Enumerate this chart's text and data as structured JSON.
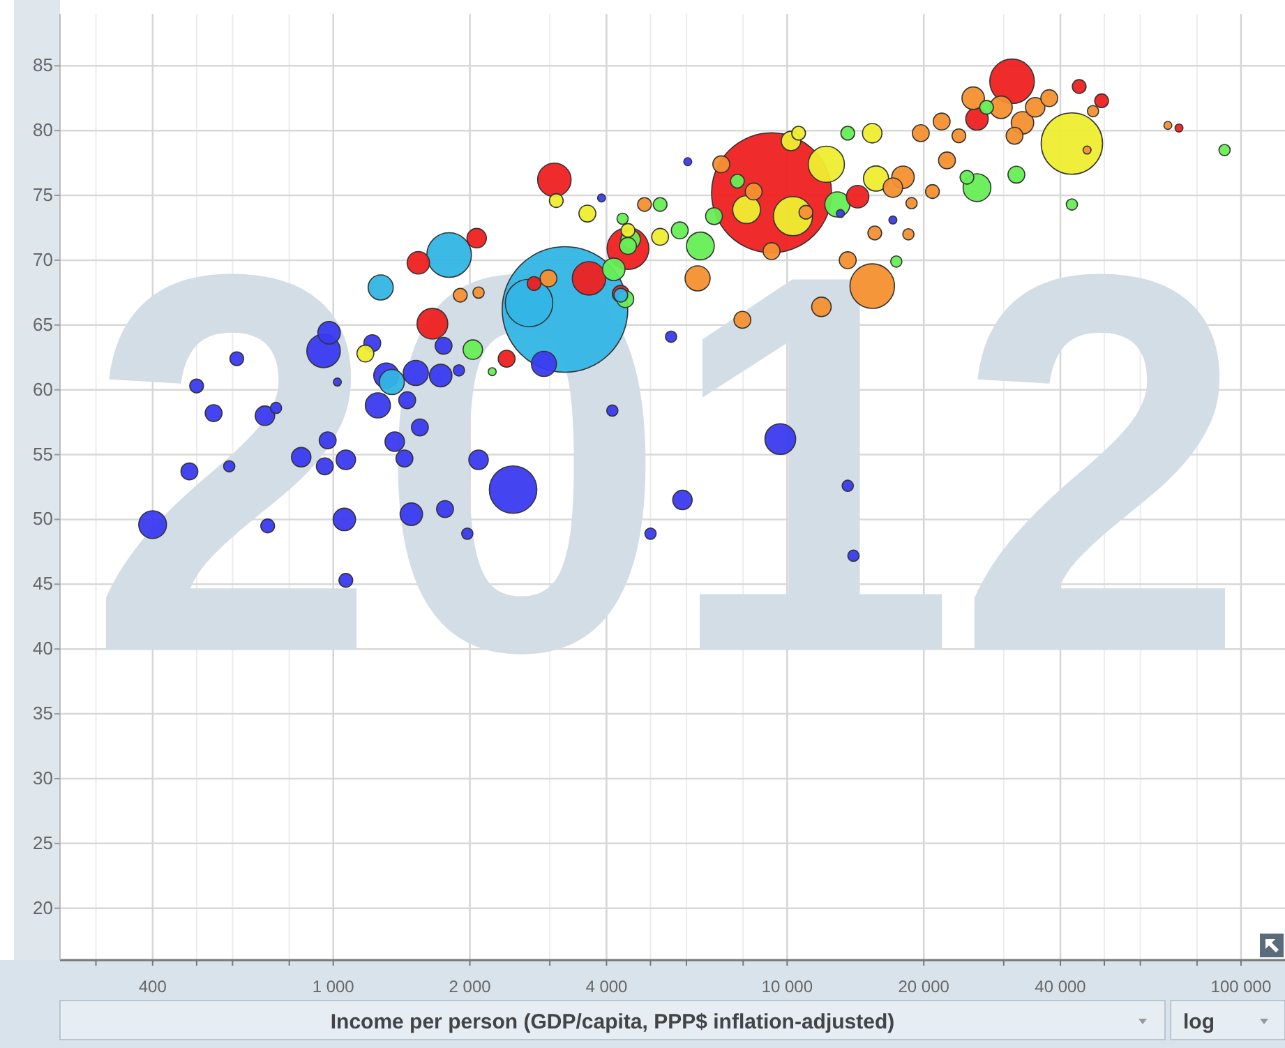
{
  "chart_data": {
    "type": "bubble",
    "xlabel": "Income per person (GDP/capita, PPP$ inflation-adjusted)",
    "log": "x",
    "grid": true,
    "marker": "circle",
    "annotations": [
      "2012",
      "log"
    ],
    "xlim": [
      250,
      125000
    ],
    "ylim": [
      16,
      89
    ],
    "xticks": [
      {
        "value": 300,
        "label": null
      },
      {
        "value": 400,
        "label": "400"
      },
      {
        "value": 500,
        "label": null
      },
      {
        "value": 600,
        "label": null
      },
      {
        "value": 800,
        "label": null
      },
      {
        "value": 1000,
        "label": "1 000"
      },
      {
        "value": 2000,
        "label": "2 000"
      },
      {
        "value": 3000,
        "label": null
      },
      {
        "value": 4000,
        "label": "4 000"
      },
      {
        "value": 5000,
        "label": null
      },
      {
        "value": 6000,
        "label": null
      },
      {
        "value": 8000,
        "label": null
      },
      {
        "value": 10000,
        "label": "10 000"
      },
      {
        "value": 20000,
        "label": "20 000"
      },
      {
        "value": 30000,
        "label": null
      },
      {
        "value": 40000,
        "label": "40 000"
      },
      {
        "value": 50000,
        "label": null
      },
      {
        "value": 60000,
        "label": null
      },
      {
        "value": 80000,
        "label": null
      },
      {
        "value": 100000,
        "label": "100 000"
      }
    ],
    "yticks": [
      20,
      25,
      30,
      35,
      40,
      45,
      50,
      55,
      60,
      65,
      70,
      75,
      80,
      85
    ],
    "series": [
      {
        "color": "#3a3af0",
        "x": [
          400,
          482,
          590,
          500,
          545,
          613,
          707,
          748,
          717,
          850,
          958,
          972,
          1066,
          1058,
          1066,
          952,
          979,
          1021,
          1219,
          1254,
          1309,
          1455,
          1520,
          1552,
          1366,
          1435,
          1725,
          1750,
          1892,
          2090,
          1486,
          1763,
          1974,
          2490,
          2912,
          4120,
          3900,
          9660,
          5880,
          5000,
          13600,
          14000,
          5550,
          17100,
          6040,
          13100
        ],
        "values": [
          49.6,
          53.7,
          54.1,
          60.3,
          58.2,
          62.4,
          58.0,
          58.6,
          49.5,
          54.8,
          54.1,
          56.1,
          54.6,
          50.0,
          45.3,
          63.0,
          64.4,
          60.6,
          63.6,
          58.8,
          61.1,
          59.2,
          61.3,
          57.1,
          56.0,
          54.7,
          61.1,
          63.4,
          61.5,
          54.6,
          50.4,
          50.8,
          48.9,
          52.3,
          62.0,
          58.4,
          74.8,
          56.2,
          51.5,
          48.9,
          52.6,
          47.2,
          64.1,
          73.1,
          77.6,
          73.6
        ],
        "sizes": [
          0.049,
          0.018,
          0.008,
          0.012,
          0.018,
          0.012,
          0.024,
          0.008,
          0.012,
          0.024,
          0.018,
          0.018,
          0.024,
          0.032,
          0.012,
          0.071,
          0.032,
          0.004,
          0.018,
          0.04,
          0.04,
          0.018,
          0.04,
          0.018,
          0.024,
          0.018,
          0.032,
          0.018,
          0.008,
          0.024,
          0.032,
          0.018,
          0.008,
          0.143,
          0.04,
          0.008,
          0.004,
          0.06,
          0.024,
          0.008,
          0.008,
          0.008,
          0.008,
          0.004,
          0.004,
          0.004
        ]
      },
      {
        "color": "#33b5e5",
        "x": [
          1272,
          1800,
          1346,
          3240,
          2700,
          4300
        ],
        "values": [
          67.9,
          70.4,
          60.6,
          66.2,
          66.7,
          67.3
        ],
        "sizes": [
          0.04,
          0.126,
          0.04,
          1,
          0.143,
          0.012
        ]
      },
      {
        "color": "#ee2020",
        "x": [
          3070,
          1540,
          2070,
          1654,
          2410,
          3660,
          4460,
          4300,
          2770,
          9240,
          14300,
          31300,
          26200,
          44000,
          49300,
          73000
        ],
        "values": [
          76.2,
          69.8,
          71.7,
          65.1,
          62.4,
          68.6,
          70.9,
          67.4,
          68.2,
          75.2,
          74.9,
          83.8,
          80.9,
          83.4,
          82.3,
          80.2
        ],
        "sizes": [
          0.071,
          0.032,
          0.024,
          0.06,
          0.018,
          0.071,
          0.111,
          0.018,
          0.012,
          0.913,
          0.032,
          0.126,
          0.032,
          0.012,
          0.012,
          0.004
        ]
      },
      {
        "color": "#eeee30",
        "x": [
          1177,
          3100,
          3630,
          42400,
          12200,
          10200,
          8140,
          10300,
          15700,
          15400,
          10600,
          5250,
          4460
        ],
        "values": [
          62.8,
          74.6,
          73.6,
          79.0,
          77.4,
          79.2,
          73.9,
          73.4,
          76.3,
          79.8,
          79.8,
          71.8,
          72.3
        ],
        "sizes": [
          0.018,
          0.012,
          0.018,
          0.239,
          0.083,
          0.024,
          0.049,
          0.097,
          0.04,
          0.024,
          0.012,
          0.018,
          0.012
        ]
      },
      {
        "color": "#66ee55",
        "x": [
          2030,
          2240,
          4400,
          4150,
          4460,
          4340,
          6440,
          5800,
          5250,
          4520,
          12900,
          13600,
          26200,
          32000,
          27500,
          24900,
          42400,
          92000,
          7770,
          6900,
          17400
        ],
        "values": [
          63.1,
          61.4,
          67.0,
          69.3,
          71.1,
          73.2,
          71.1,
          72.3,
          74.3,
          71.6,
          74.3,
          79.8,
          75.6,
          76.6,
          81.8,
          76.4,
          74.3,
          78.5,
          76.1,
          73.4,
          69.9
        ],
        "sizes": [
          0.024,
          0.004,
          0.018,
          0.032,
          0.018,
          0.008,
          0.049,
          0.018,
          0.012,
          0.024,
          0.04,
          0.012,
          0.049,
          0.018,
          0.012,
          0.012,
          0.008,
          0.008,
          0.012,
          0.018,
          0.008
        ]
      },
      {
        "color": "#f59030",
        "x": [
          1905,
          2090,
          2980,
          15400,
          13600,
          11900,
          7970,
          6350,
          17100,
          18000,
          19700,
          21900,
          22500,
          20900,
          15600,
          18500,
          18800,
          23900,
          25700,
          29600,
          33000,
          35200,
          37800,
          31700,
          47200,
          69000,
          45800,
          9240,
          8440,
          7160,
          11000,
          4850
        ],
        "values": [
          67.3,
          67.5,
          68.6,
          68.0,
          70.0,
          66.4,
          65.4,
          68.6,
          75.6,
          76.4,
          79.8,
          80.7,
          77.7,
          75.3,
          72.1,
          72.0,
          74.4,
          79.6,
          82.5,
          81.8,
          80.6,
          81.8,
          82.5,
          79.6,
          81.5,
          80.4,
          78.5,
          70.7,
          75.3,
          77.4,
          73.7,
          74.3
        ],
        "sizes": [
          0.012,
          0.008,
          0.018,
          0.126,
          0.018,
          0.024,
          0.018,
          0.04,
          0.024,
          0.032,
          0.018,
          0.018,
          0.018,
          0.012,
          0.012,
          0.008,
          0.008,
          0.012,
          0.032,
          0.032,
          0.032,
          0.024,
          0.018,
          0.018,
          0.008,
          0.004,
          0.004,
          0.018,
          0.018,
          0.018,
          0.012,
          0.012
        ]
      }
    ]
  }
}
